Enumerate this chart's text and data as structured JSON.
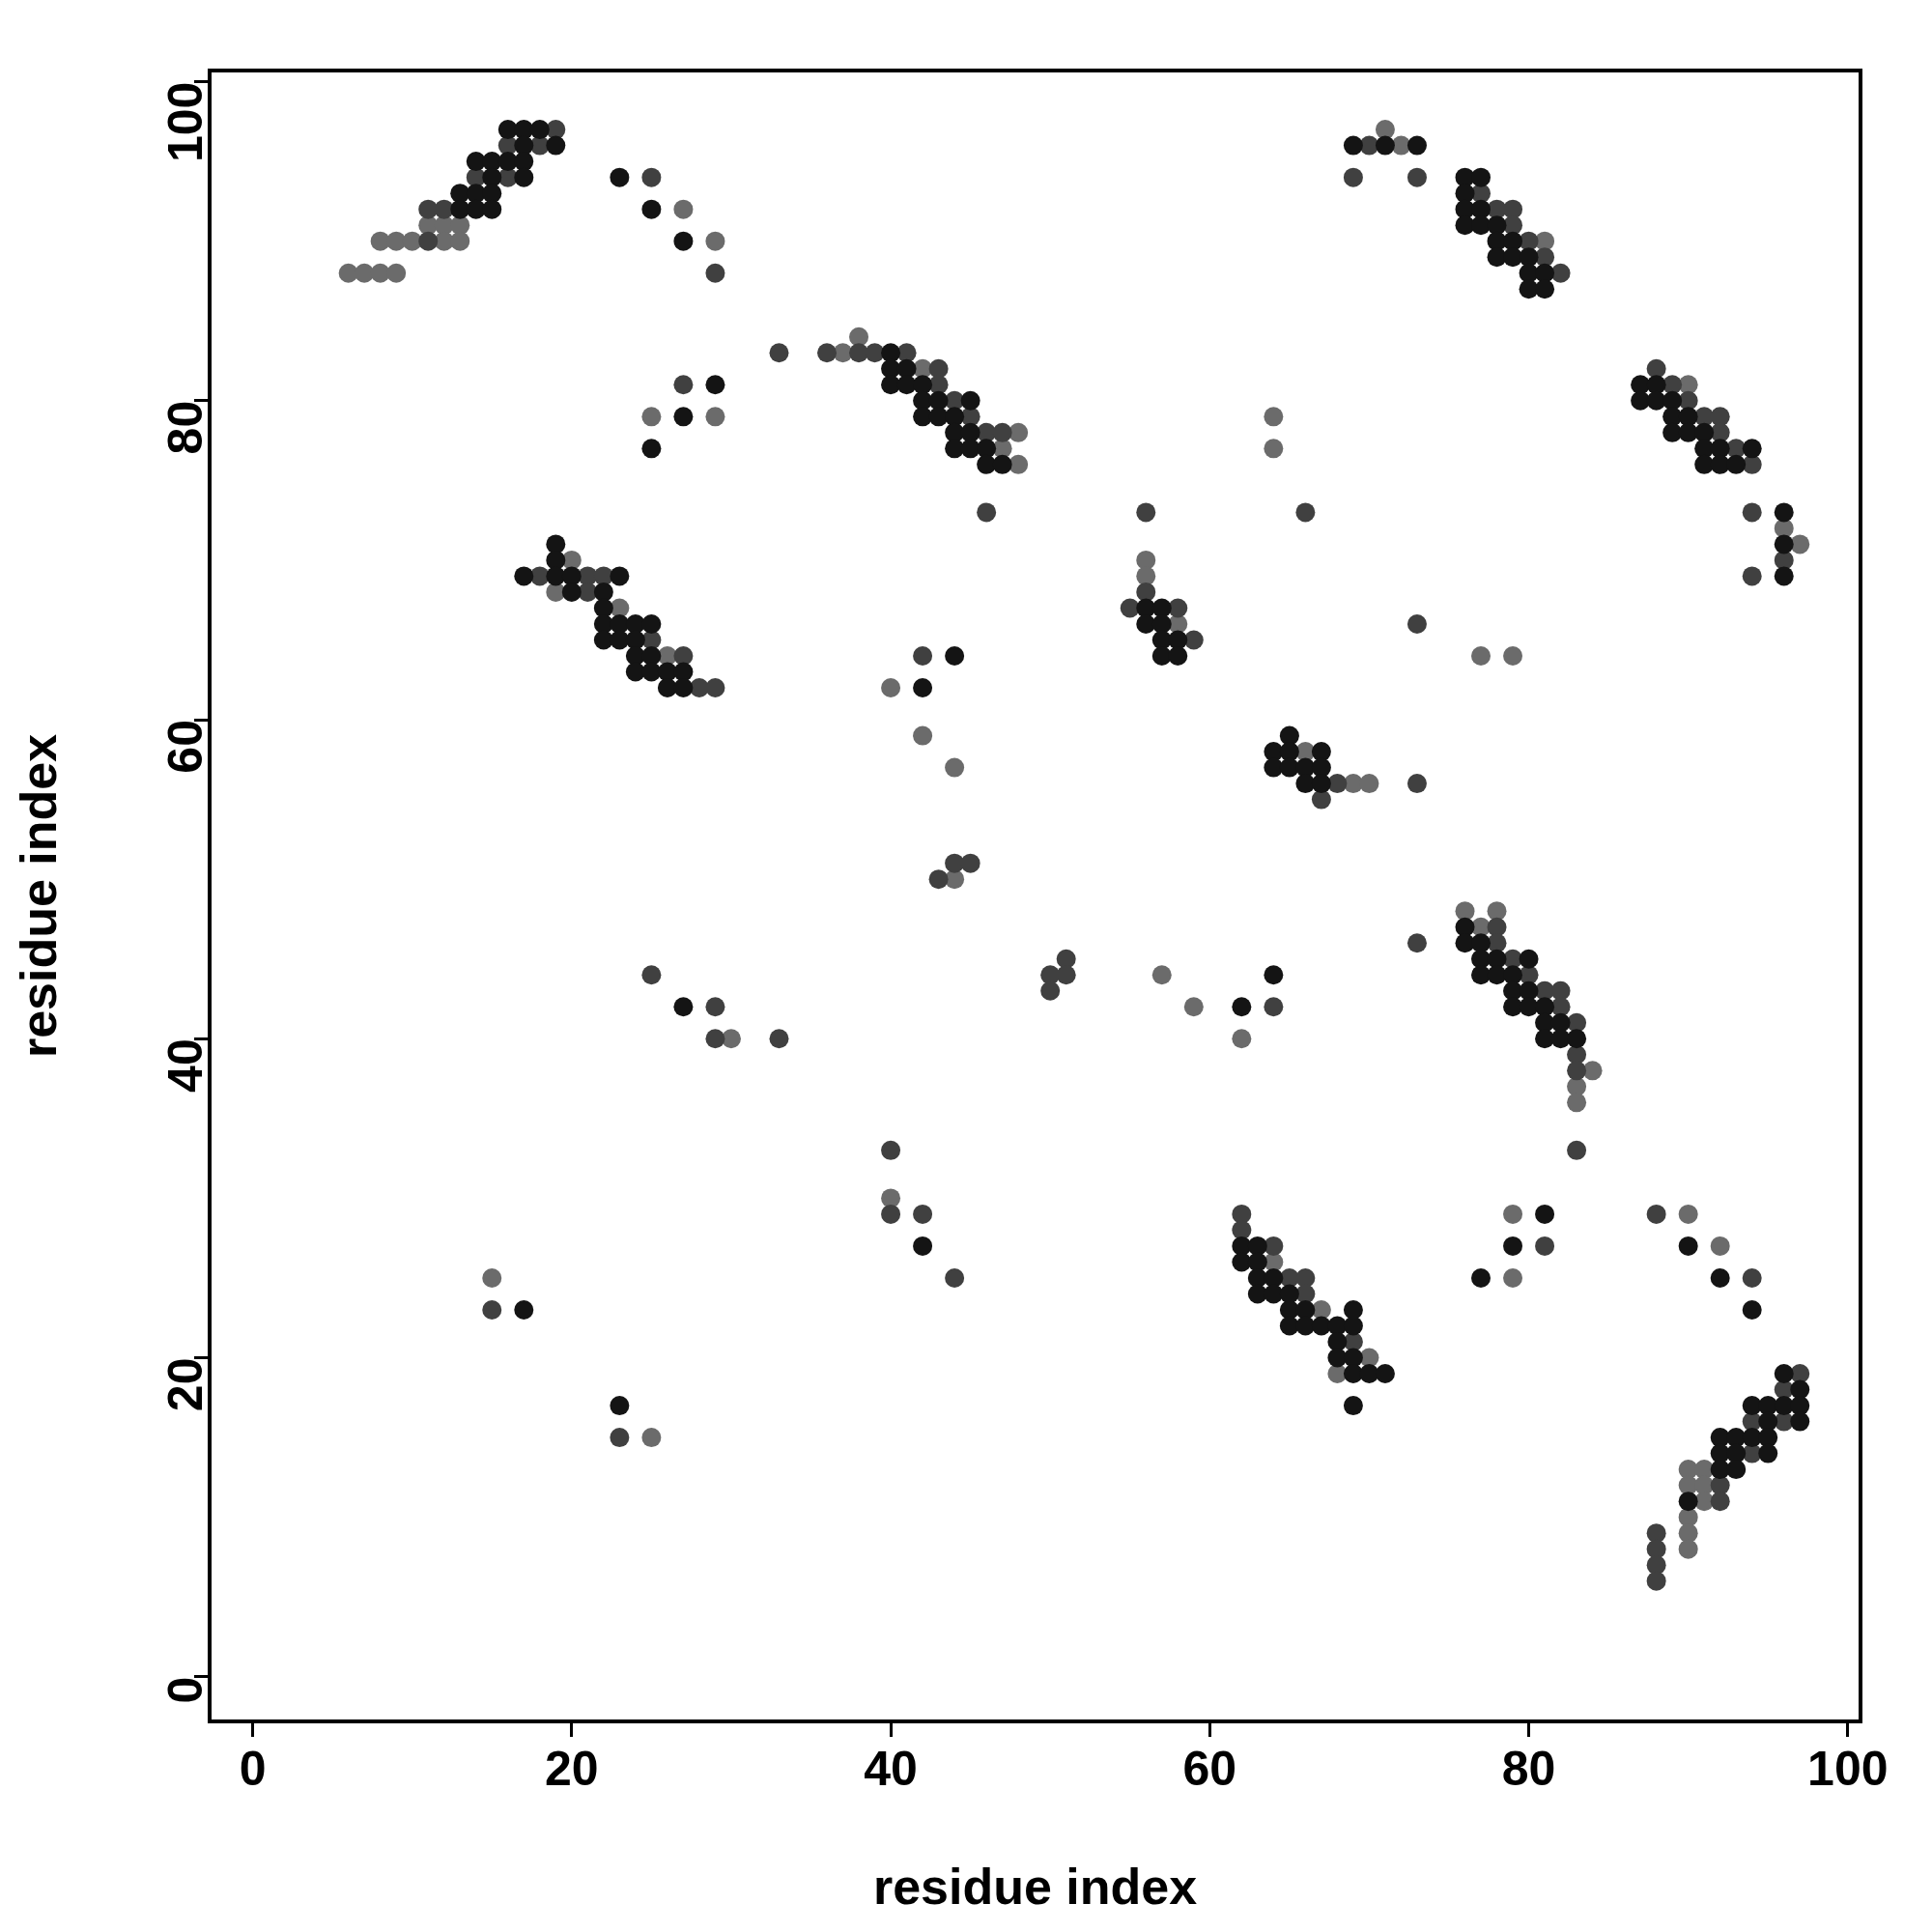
{
  "chart_data": {
    "type": "scatter",
    "xlabel": "residue index",
    "ylabel": "residue index",
    "xlim": [
      -2.7,
      100.8
    ],
    "ylim": [
      -2.8,
      100.7
    ],
    "xticks": [
      0,
      20,
      40,
      60,
      80,
      100
    ],
    "yticks": [
      0,
      20,
      40,
      60,
      80,
      100
    ],
    "marker": "circle",
    "legend": false,
    "series": [
      {
        "color": "#141414",
        "x": [
          16,
          17,
          18,
          17,
          19,
          14,
          15,
          16,
          17,
          15,
          17,
          23,
          13,
          14,
          15,
          13,
          14,
          15,
          25,
          27,
          29,
          27,
          25,
          19,
          19,
          17,
          19,
          20,
          23,
          20,
          22,
          22,
          22,
          23,
          24,
          25,
          22,
          23,
          24,
          24,
          25,
          24,
          25,
          26,
          27,
          26,
          27,
          40,
          40,
          41,
          40,
          41,
          42,
          42,
          43,
          45,
          42,
          43,
          44,
          44,
          45,
          44,
          45,
          46,
          46,
          47,
          56,
          57,
          56,
          57,
          57,
          58,
          57,
          58,
          44,
          42,
          65,
          64,
          65,
          67,
          64,
          65,
          66,
          67,
          66,
          67,
          69,
          71,
          73,
          76,
          77,
          76,
          76,
          77,
          76,
          77,
          78,
          78,
          79,
          78,
          79,
          80,
          80,
          81,
          80,
          81,
          87,
          88,
          87,
          88,
          89,
          89,
          90,
          89,
          90,
          91,
          91,
          92,
          94,
          91,
          92,
          93,
          96,
          96,
          96,
          27,
          17,
          23,
          64,
          62,
          42,
          62,
          63,
          62,
          63,
          63,
          64,
          63,
          64,
          65,
          65,
          66,
          65,
          66,
          76,
          76,
          77,
          77,
          78,
          80,
          77,
          78,
          79,
          79,
          80,
          79,
          80,
          81,
          81,
          82,
          81,
          82,
          83,
          81,
          79,
          90,
          77,
          92,
          94,
          67,
          68,
          69,
          69,
          68,
          68,
          69,
          69,
          70,
          71,
          69,
          96,
          97,
          94,
          95,
          96,
          97,
          95,
          97,
          92,
          93,
          94,
          95,
          92,
          93,
          95,
          92,
          93,
          90
        ],
        "values": [
          97,
          97,
          97,
          96,
          96,
          95,
          95,
          95,
          95,
          94,
          94,
          94,
          93,
          93,
          93,
          92,
          92,
          92,
          92,
          90,
          81,
          79,
          77,
          71,
          70,
          69,
          69,
          69,
          69,
          68,
          68,
          67,
          66,
          66,
          66,
          66,
          65,
          65,
          65,
          64,
          64,
          63,
          63,
          63,
          63,
          62,
          62,
          83,
          82,
          82,
          81,
          81,
          81,
          80,
          80,
          80,
          79,
          79,
          79,
          78,
          78,
          77,
          77,
          77,
          76,
          76,
          67,
          67,
          66,
          66,
          65,
          65,
          64,
          64,
          64,
          62,
          59,
          58,
          58,
          58,
          57,
          57,
          57,
          57,
          56,
          56,
          96,
          96,
          96,
          94,
          94,
          93,
          92,
          92,
          91,
          91,
          91,
          90,
          90,
          89,
          89,
          89,
          88,
          88,
          87,
          87,
          81,
          81,
          80,
          80,
          80,
          79,
          79,
          78,
          78,
          78,
          77,
          77,
          77,
          76,
          76,
          76,
          73,
          71,
          69,
          42,
          23,
          17,
          44,
          42,
          27,
          27,
          27,
          26,
          26,
          25,
          25,
          24,
          24,
          24,
          23,
          23,
          22,
          22,
          47,
          46,
          46,
          45,
          45,
          45,
          44,
          44,
          44,
          43,
          43,
          42,
          42,
          42,
          41,
          41,
          40,
          40,
          40,
          29,
          27,
          27,
          25,
          25,
          23,
          22,
          22,
          22,
          23,
          21,
          20,
          20,
          19,
          19,
          19,
          17,
          19,
          18,
          17,
          17,
          17,
          17,
          16,
          16,
          15,
          15,
          15,
          15,
          14,
          14,
          14,
          13,
          13,
          11
        ]
      },
      {
        "color": "#404040",
        "x": [
          19,
          16,
          18,
          14,
          16,
          25,
          11,
          12,
          11,
          29,
          27,
          18,
          21,
          22,
          21,
          25,
          27,
          28,
          29,
          33,
          36,
          38,
          39,
          41,
          43,
          43,
          44,
          45,
          46,
          47,
          46,
          56,
          66,
          56,
          55,
          58,
          59,
          42,
          44,
          45,
          43,
          68,
          67,
          70,
          69,
          73,
          77,
          78,
          79,
          79,
          80,
          81,
          82,
          88,
          89,
          90,
          91,
          92,
          92,
          93,
          94,
          94,
          96,
          94,
          73,
          73,
          25,
          29,
          29,
          15,
          23,
          51,
          50,
          51,
          50,
          64,
          33,
          40,
          42,
          62,
          62,
          64,
          44,
          65,
          66,
          66,
          40,
          78,
          73,
          78,
          79,
          80,
          81,
          82,
          82,
          83,
          83,
          83,
          83,
          88,
          81,
          94,
          69,
          97,
          96,
          94,
          96,
          94,
          92,
          92,
          88,
          88,
          88,
          88
        ],
        "values": [
          97,
          96,
          96,
          94,
          94,
          94,
          92,
          92,
          90,
          88,
          81,
          69,
          69,
          69,
          68,
          65,
          64,
          62,
          62,
          83,
          83,
          83,
          83,
          83,
          82,
          81,
          80,
          79,
          78,
          78,
          73,
          73,
          73,
          68,
          67,
          67,
          65,
          64,
          51,
          51,
          50,
          56,
          55,
          96,
          94,
          94,
          93,
          92,
          92,
          91,
          90,
          89,
          88,
          82,
          81,
          80,
          79,
          79,
          78,
          77,
          76,
          73,
          70,
          69,
          66,
          56,
          44,
          42,
          40,
          23,
          15,
          45,
          44,
          44,
          43,
          42,
          40,
          29,
          29,
          29,
          28,
          27,
          25,
          25,
          25,
          24,
          33,
          47,
          46,
          46,
          45,
          44,
          43,
          43,
          42,
          41,
          39,
          38,
          33,
          29,
          27,
          25,
          21,
          19,
          18,
          16,
          16,
          14,
          12,
          11,
          9,
          8,
          7,
          6
        ]
      },
      {
        "color": "#6b6b6b",
        "x": [
          71,
          72,
          27,
          11,
          12,
          13,
          8,
          9,
          10,
          12,
          13,
          29,
          6,
          7,
          8,
          9,
          25,
          29,
          20,
          19,
          23,
          26,
          38,
          37,
          42,
          48,
          47,
          48,
          64,
          64,
          56,
          56,
          58,
          40,
          42,
          44,
          44,
          66,
          69,
          70,
          81,
          90,
          96,
          97,
          77,
          79,
          30,
          15,
          25,
          57,
          59,
          62,
          40,
          64,
          76,
          78,
          77,
          84,
          83,
          83,
          79,
          90,
          92,
          79,
          67,
          70,
          68,
          90,
          91,
          90,
          91,
          91,
          90,
          90,
          90
        ],
        "values": [
          97,
          96,
          92,
          91,
          91,
          91,
          90,
          90,
          90,
          90,
          90,
          90,
          88,
          88,
          88,
          88,
          79,
          79,
          70,
          68,
          67,
          64,
          84,
          83,
          82,
          78,
          77,
          76,
          79,
          77,
          70,
          69,
          66,
          62,
          59,
          57,
          50,
          58,
          56,
          56,
          90,
          81,
          72,
          71,
          64,
          64,
          40,
          25,
          15,
          44,
          42,
          40,
          30,
          26,
          48,
          48,
          47,
          38,
          37,
          36,
          29,
          29,
          27,
          25,
          23,
          20,
          19,
          13,
          13,
          12,
          12,
          11,
          10,
          9,
          8
        ]
      }
    ]
  }
}
